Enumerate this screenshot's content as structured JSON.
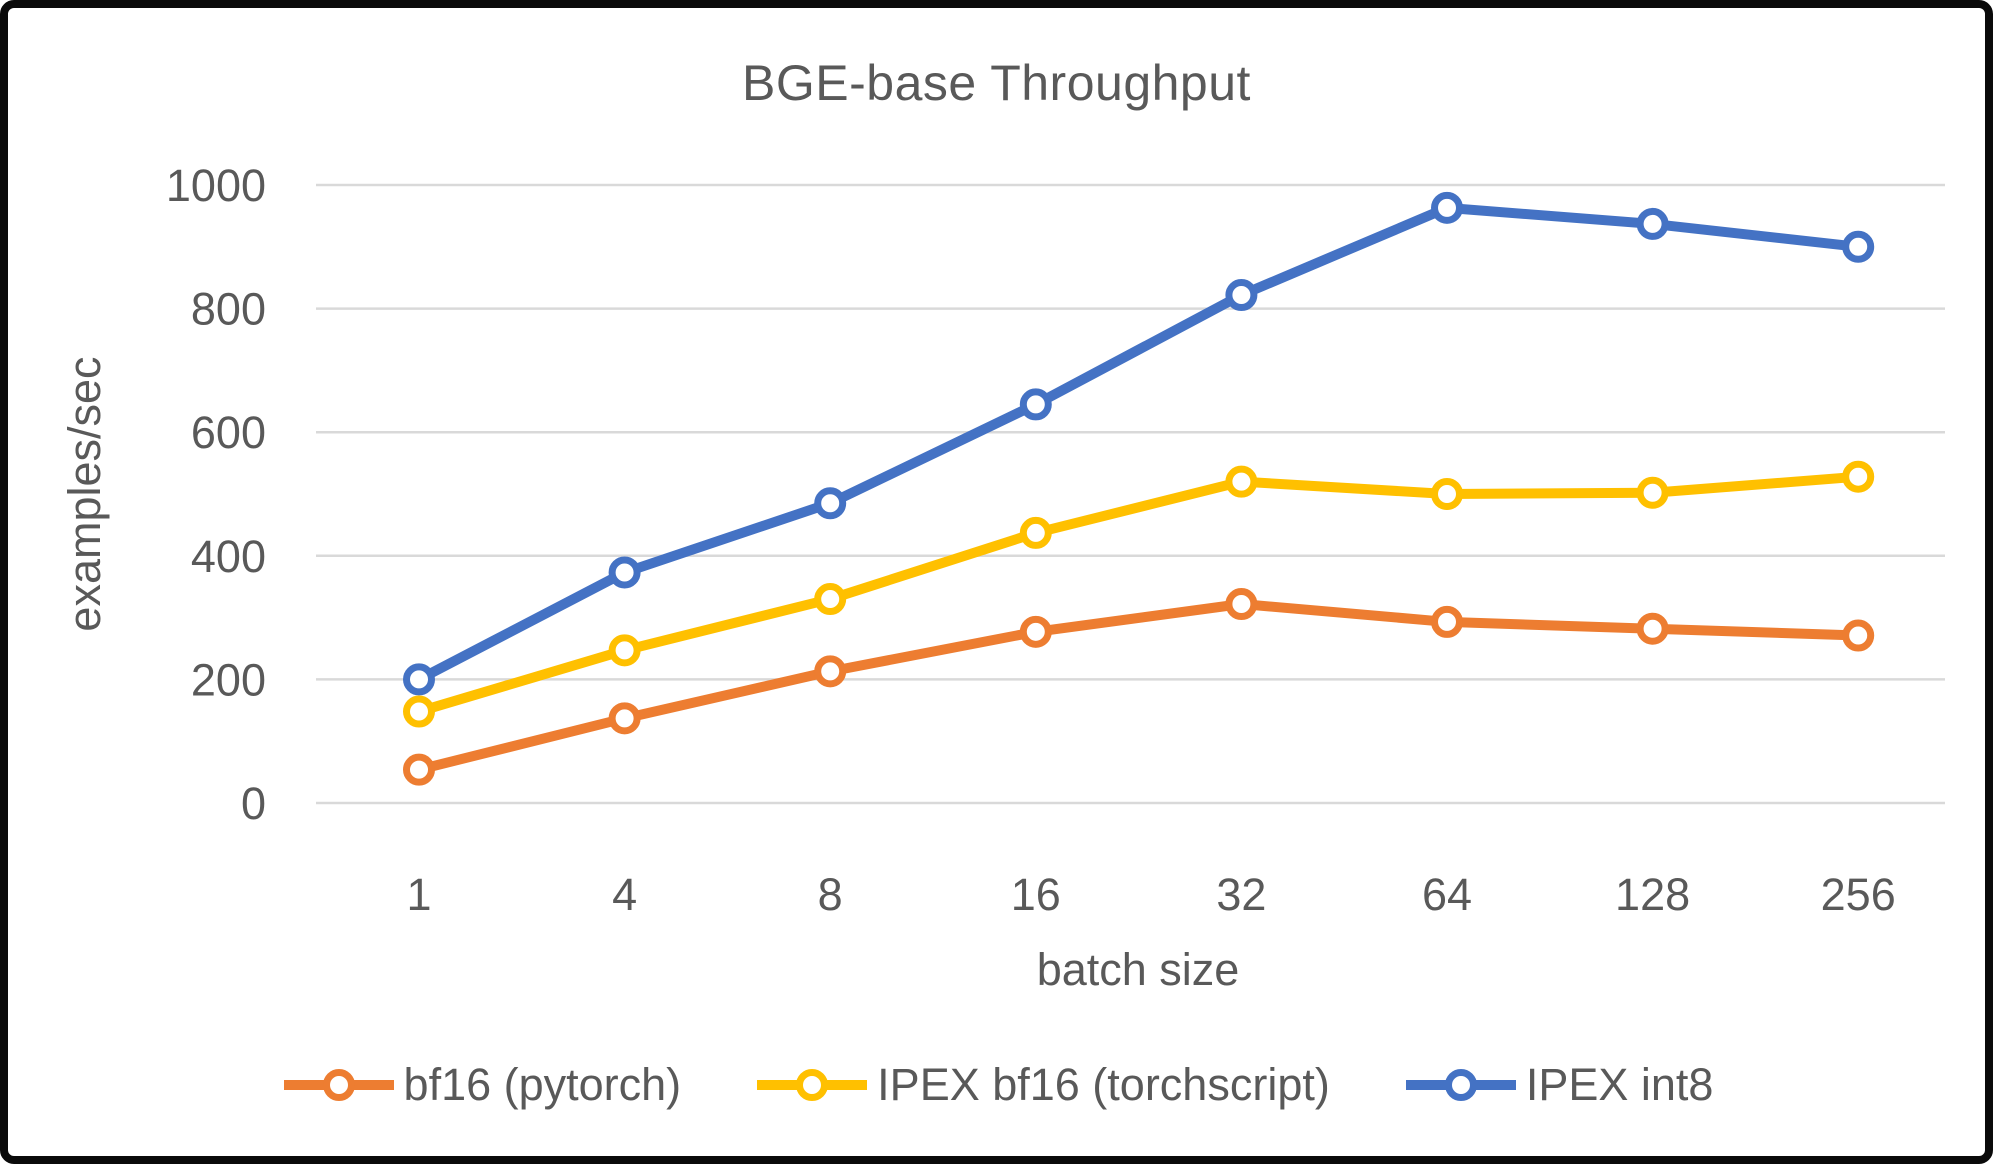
{
  "chart_data": {
    "type": "line",
    "title": "BGE-base Throughput",
    "xlabel": "batch size",
    "ylabel": "examples/sec",
    "categories": [
      "1",
      "4",
      "8",
      "16",
      "32",
      "64",
      "128",
      "256"
    ],
    "y_ticks": [
      0,
      200,
      400,
      600,
      800,
      1000
    ],
    "ylim": [
      0,
      1000
    ],
    "grid": "horizontal-only",
    "legend_position": "bottom",
    "marker_style": "open-circle",
    "series": [
      {
        "name": "bf16 (pytorch)",
        "color": "#ED7D31",
        "values": [
          54,
          137,
          213,
          277,
          322,
          293,
          282,
          271
        ]
      },
      {
        "name": "IPEX bf16 (torchscript)",
        "color": "#FFC000",
        "values": [
          148,
          247,
          330,
          437,
          520,
          500,
          502,
          528
        ]
      },
      {
        "name": "IPEX int8",
        "color": "#4472C4",
        "values": [
          200,
          373,
          485,
          645,
          822,
          963,
          937,
          900
        ]
      }
    ]
  },
  "style": {
    "text_color": "#595959",
    "grid_color": "#D9D9D9",
    "background_color": "#FFFFFF",
    "frame_color": "#0A0A0A"
  }
}
